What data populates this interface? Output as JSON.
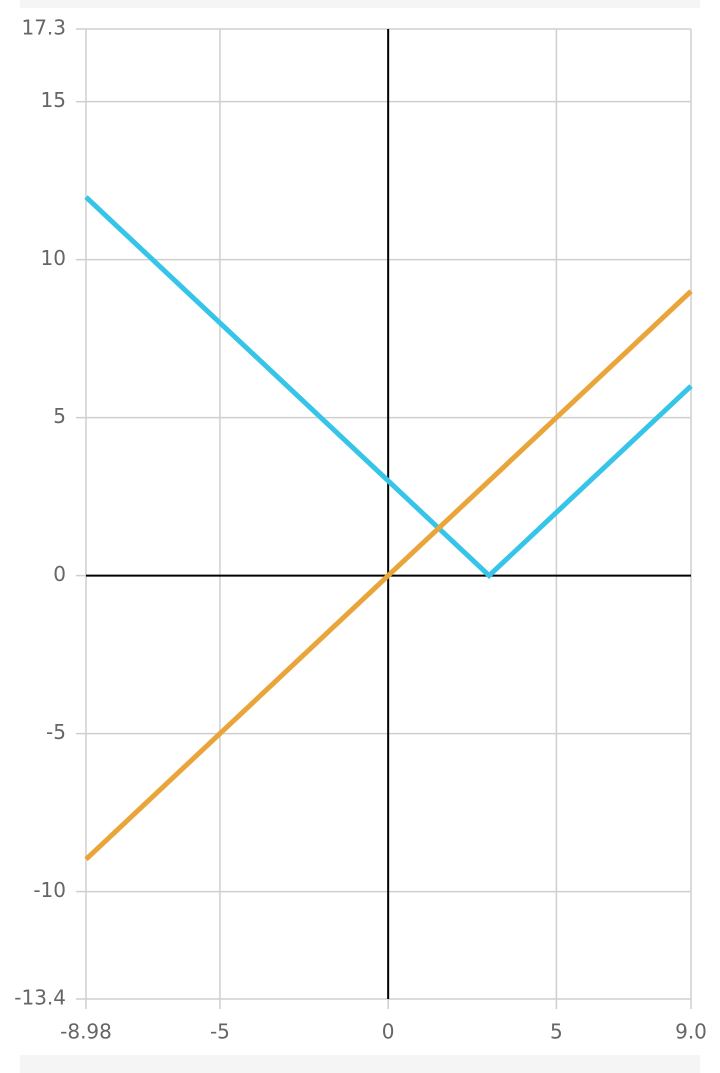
{
  "chart_data": {
    "type": "line",
    "xlim": [
      -8.98,
      9
    ],
    "xticks": [
      -8.98,
      -5,
      0,
      5,
      {
        "value": 9,
        "label": "9.0"
      }
    ],
    "ylim": [
      -13.4,
      17.3
    ],
    "yticks": [
      -13.4,
      -10,
      -5,
      0,
      5,
      10,
      15,
      17.3
    ],
    "grid": true,
    "series": [
      {
        "color": "#36c5e8",
        "x": [
          -8.98,
          3,
          9
        ],
        "values": [
          11.98,
          0,
          6
        ]
      },
      {
        "color": "#e9a53a",
        "x": [
          -8.98,
          9
        ],
        "values": [
          -8.98,
          9
        ]
      }
    ]
  }
}
